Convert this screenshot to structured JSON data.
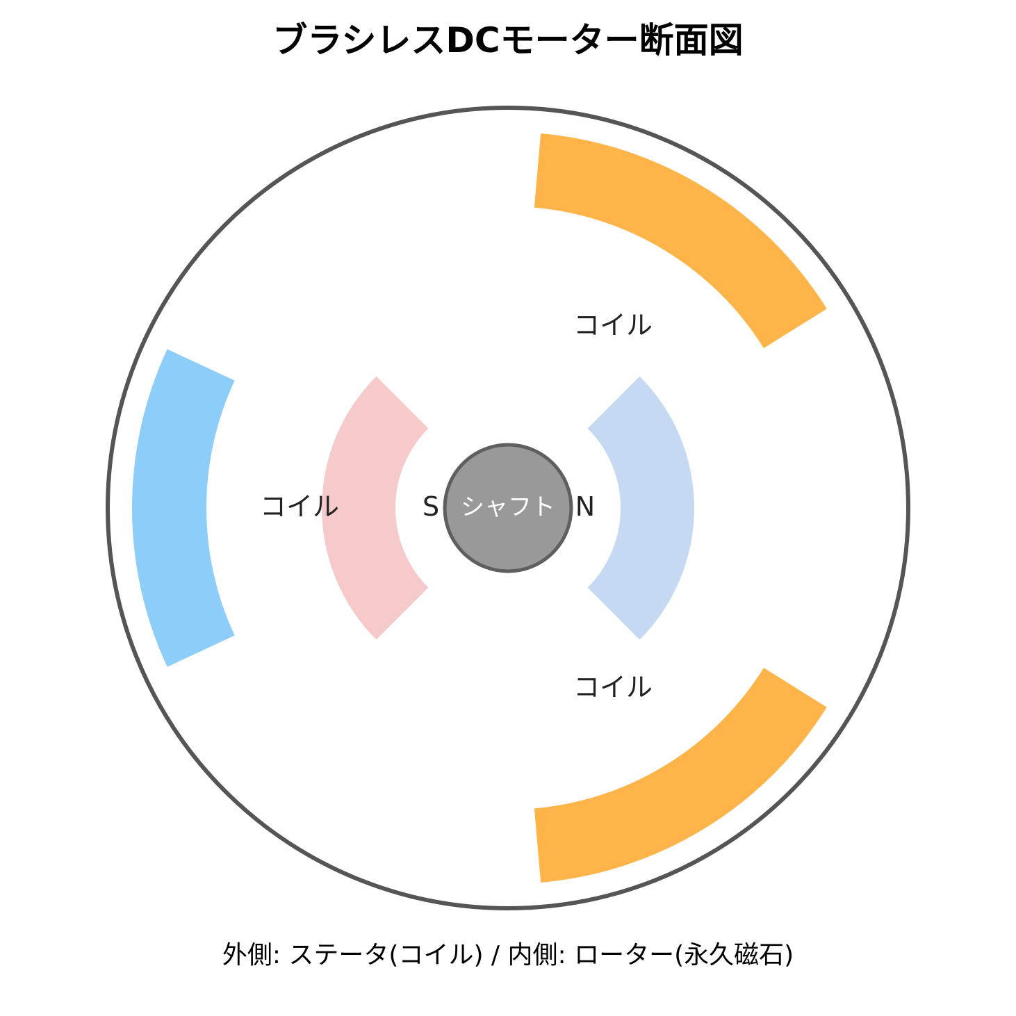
{
  "title": "ブラシレスDCモーター断面図",
  "coils": [
    {
      "label": "コイル",
      "color": "#FFB44A"
    },
    {
      "label": "コイル",
      "color": "#8DCDF9"
    },
    {
      "label": "コイル",
      "color": "#FFB44A"
    }
  ],
  "magnets": {
    "north": {
      "label": "N",
      "color": "#C5DAF2"
    },
    "south": {
      "label": "S",
      "color": "#F6CACA"
    }
  },
  "shaft": {
    "label": "シャフト",
    "color": "#999999",
    "border_color": "#5F5F5F"
  },
  "housing": {
    "stroke_color": "#555555"
  },
  "caption": "外側: ステータ(コイル) / 内側: ローター(永久磁石)"
}
